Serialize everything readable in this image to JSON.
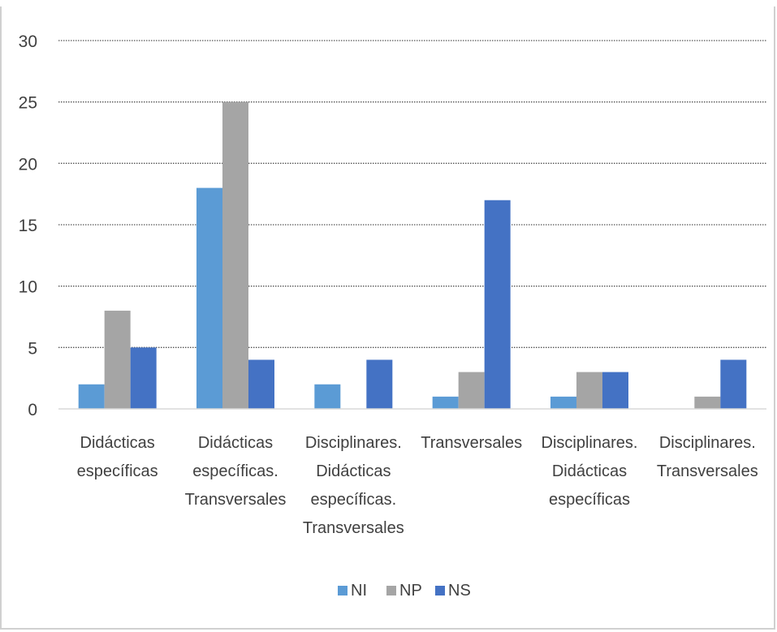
{
  "chart_data": {
    "type": "bar",
    "title": "",
    "xlabel": "",
    "ylabel": "",
    "ylim": [
      0,
      30
    ],
    "yticks": [
      0,
      5,
      10,
      15,
      20,
      25,
      30
    ],
    "grid": true,
    "legend_position": "bottom",
    "categories": [
      [
        "Didácticas",
        "específicas"
      ],
      [
        "Didácticas",
        "específicas.",
        "Transversales"
      ],
      [
        "Disciplinares.",
        "Didácticas",
        "específicas.",
        "Transversales"
      ],
      [
        "Transversales"
      ],
      [
        "Disciplinares.",
        "Didácticas",
        "específicas"
      ],
      [
        "Disciplinares.",
        "Transversales"
      ]
    ],
    "series": [
      {
        "name": "NI",
        "color": "#5B9BD5",
        "values": [
          2,
          18,
          2,
          1,
          1,
          0
        ]
      },
      {
        "name": "NP",
        "color": "#A5A5A5",
        "values": [
          8,
          25,
          0,
          3,
          3,
          1
        ]
      },
      {
        "name": "NS",
        "color": "#4472C4",
        "values": [
          5,
          4,
          4,
          17,
          3,
          4
        ]
      }
    ]
  }
}
